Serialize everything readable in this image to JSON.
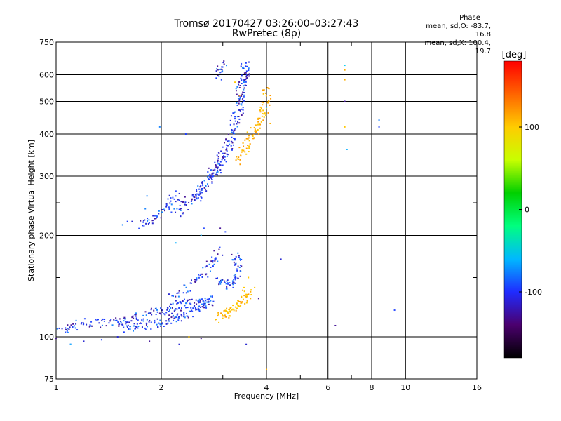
{
  "chart_data": {
    "type": "scatter",
    "title_line1": "Tromsø 20170427 03:26:00–03:27:43",
    "title_line2": "RwPretec (8p)",
    "xlabel": "Frequency [MHz]",
    "ylabel": "Stationary phase Virtual Height [km]",
    "x_scale": "log",
    "y_scale": "log",
    "xlim": [
      1,
      16
    ],
    "ylim": [
      75,
      750
    ],
    "x_ticks": [
      1,
      2,
      4,
      6,
      8,
      10,
      16
    ],
    "x_minor_ticks": [
      3,
      5,
      7
    ],
    "y_ticks": [
      75,
      100,
      200,
      300,
      400,
      500,
      600,
      750
    ],
    "y_minor_ticks": [
      150,
      250
    ],
    "grid": true,
    "phase_info": {
      "label": "Phase",
      "line_o": "mean, sd,O: -83.7, 16.8",
      "line_x": "mean, sd,X: 100.4, 19.7"
    },
    "colorbar": {
      "label": "[deg]",
      "range": [
        -180,
        180
      ],
      "ticks": [
        100,
        0,
        -100
      ],
      "colors": [
        "#000000",
        "#4b006e",
        "#1f2bff",
        "#00b8ff",
        "#00ff80",
        "#00d000",
        "#c8ff00",
        "#ffcc00",
        "#ff6400",
        "#ff0000"
      ]
    },
    "series": [
      {
        "traces": [
          [
            [
              1.02,
              104
            ],
            [
              1.08,
              106
            ],
            [
              1.15,
              109
            ],
            [
              1.25,
              110
            ],
            [
              1.35,
              110
            ],
            [
              1.45,
              110
            ],
            [
              1.55,
              111
            ],
            [
              1.65,
              113
            ],
            [
              1.75,
              115
            ],
            [
              1.85,
              117
            ],
            [
              1.95,
              119
            ],
            [
              2.05,
              121
            ],
            [
              2.15,
              123
            ],
            [
              2.25,
              124
            ],
            [
              2.35,
              125
            ],
            [
              2.45,
              126
            ],
            [
              2.55,
              127
            ],
            [
              2.65,
              128
            ],
            [
              2.75,
              130
            ]
          ],
          [
            [
              1.5,
              106
            ],
            [
              1.6,
              107
            ],
            [
              1.7,
              107
            ],
            [
              1.8,
              108
            ],
            [
              1.9,
              109
            ],
            [
              2.0,
              110
            ],
            [
              2.1,
              112
            ],
            [
              2.2,
              114
            ],
            [
              2.3,
              116
            ],
            [
              2.4,
              118
            ],
            [
              2.5,
              120
            ],
            [
              2.6,
              123
            ],
            [
              2.7,
              126
            ],
            [
              2.8,
              129
            ]
          ],
          [
            [
              2.15,
              130
            ],
            [
              2.3,
              138
            ],
            [
              2.45,
              145
            ],
            [
              2.6,
              152
            ],
            [
              2.75,
              160
            ],
            [
              2.85,
              170
            ],
            [
              2.95,
              180
            ]
          ],
          [
            [
              2.9,
              150
            ],
            [
              3.0,
              145
            ],
            [
              3.1,
              142
            ],
            [
              3.2,
              145
            ],
            [
              3.25,
              150
            ],
            [
              3.3,
              160
            ],
            [
              3.3,
              170
            ],
            [
              3.25,
              175
            ]
          ],
          [
            [
              2.2,
              233
            ],
            [
              2.3,
              242
            ],
            [
              2.4,
              252
            ],
            [
              2.5,
              262
            ],
            [
              2.6,
              276
            ],
            [
              2.7,
              292
            ],
            [
              2.8,
              310
            ],
            [
              2.9,
              330
            ],
            [
              3.0,
              350
            ],
            [
              3.1,
              380
            ],
            [
              3.2,
              420
            ],
            [
              3.3,
              470
            ],
            [
              3.35,
              520
            ],
            [
              3.4,
              570
            ],
            [
              3.45,
              620
            ],
            [
              3.48,
              650
            ]
          ],
          [
            [
              2.5,
              255
            ],
            [
              2.6,
              268
            ],
            [
              2.7,
              282
            ],
            [
              2.8,
              298
            ],
            [
              2.9,
              315
            ],
            [
              3.0,
              335
            ],
            [
              3.1,
              360
            ],
            [
              3.2,
              395
            ],
            [
              3.3,
              440
            ],
            [
              3.38,
              495
            ],
            [
              3.42,
              540
            ],
            [
              3.45,
              580
            ],
            [
              3.5,
              630
            ]
          ],
          [
            [
              1.75,
              215
            ],
            [
              1.85,
              222
            ],
            [
              1.95,
              228
            ],
            [
              2.05,
              240
            ],
            [
              2.15,
              255
            ],
            [
              2.25,
              265
            ]
          ],
          [
            [
              2.9,
              590
            ],
            [
              2.95,
              620
            ],
            [
              3.0,
              650
            ]
          ]
        ],
        "points": [
          [
            1.6,
            220
          ],
          [
            1.55,
            215
          ],
          [
            1.65,
            220
          ],
          [
            1.82,
            262
          ],
          [
            1.8,
            240
          ],
          [
            2.35,
            400
          ],
          [
            1.98,
            420
          ],
          [
            2.65,
            210
          ],
          [
            2.95,
            210
          ],
          [
            3.05,
            205
          ],
          [
            1.5,
            100
          ],
          [
            1.2,
            97
          ],
          [
            1.1,
            95
          ],
          [
            1.0,
            99
          ],
          [
            1.35,
            98
          ],
          [
            1.85,
            97
          ],
          [
            2.25,
            95
          ],
          [
            2.6,
            99
          ],
          [
            3.5,
            95
          ],
          [
            3.8,
            130
          ],
          [
            4.4,
            170
          ],
          [
            6.3,
            108
          ],
          [
            9.3,
            120
          ],
          [
            6.7,
            500
          ],
          [
            8.4,
            440
          ],
          [
            8.4,
            420
          ]
        ]
      },
      {
        "traces": [
          [
            [
              2.9,
              113
            ],
            [
              3.0,
              115
            ],
            [
              3.1,
              118
            ],
            [
              3.2,
              121
            ],
            [
              3.3,
              124
            ],
            [
              3.4,
              128
            ],
            [
              3.5,
              133
            ],
            [
              3.6,
              138
            ]
          ],
          [
            [
              3.3,
              330
            ],
            [
              3.4,
              350
            ],
            [
              3.5,
              370
            ],
            [
              3.6,
              390
            ],
            [
              3.7,
              410
            ],
            [
              3.8,
              430
            ],
            [
              3.9,
              455
            ],
            [
              3.95,
              480
            ],
            [
              4.0,
              520
            ],
            [
              4.0,
              560
            ]
          ]
        ],
        "points": [
          [
            3.35,
            520
          ],
          [
            3.25,
            570
          ],
          [
            3.6,
            130
          ],
          [
            3.7,
            140
          ],
          [
            3.45,
            140
          ],
          [
            3.55,
            150
          ],
          [
            4.0,
            80
          ],
          [
            2.4,
            100
          ],
          [
            3.9,
            460
          ],
          [
            4.1,
            430
          ],
          [
            6.7,
            620
          ],
          [
            6.7,
            580
          ],
          [
            6.7,
            420
          ]
        ]
      },
      {
        "points": [
          [
            6.8,
            360
          ],
          [
            6.7,
            640
          ],
          [
            4.0,
            480
          ],
          [
            2.6,
            200
          ],
          [
            1.1,
            95
          ],
          [
            2.2,
            190
          ]
        ]
      }
    ]
  }
}
